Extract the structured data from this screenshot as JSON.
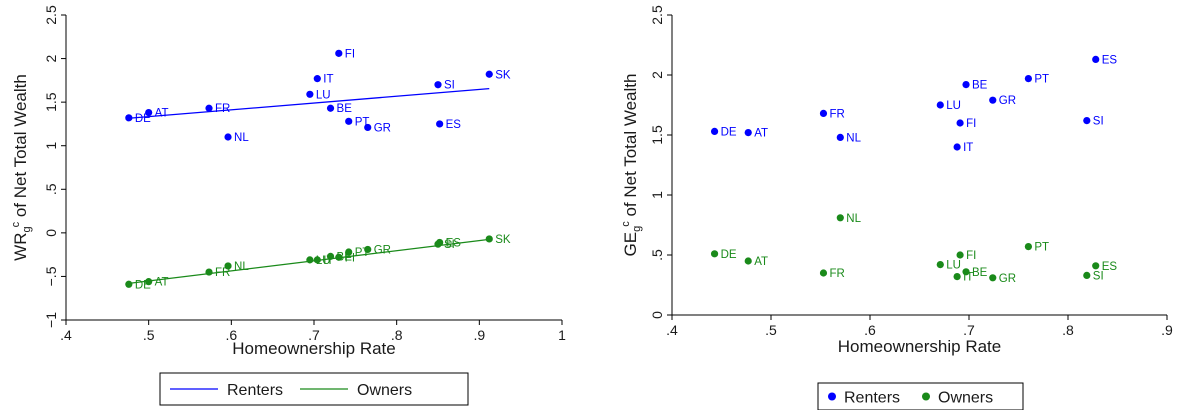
{
  "colors": {
    "renters": "#0000ff",
    "owners": "#1a8a1a"
  },
  "chart_data": [
    {
      "type": "scatter",
      "xlabel": "Homeownership Rate",
      "ylabel_main": "WR",
      "ylabel_sub": "g",
      "ylabel_sup": "c",
      "ylabel_rest": " of Net Total Wealth",
      "xlim": [
        0.4,
        1.0
      ],
      "ylim": [
        -1.0,
        2.5
      ],
      "xticks": [
        ".4",
        ".5",
        ".6",
        ".7",
        ".8",
        ".9",
        "1"
      ],
      "xtick_values": [
        0.4,
        0.5,
        0.6,
        0.7,
        0.8,
        0.9,
        1.0
      ],
      "yticks": [
        "−1",
        "−.5",
        "0",
        ".5",
        "1",
        "1.5",
        "2",
        "2.5"
      ],
      "ytick_values": [
        -1,
        -0.5,
        0,
        0.5,
        1,
        1.5,
        2,
        2.5
      ],
      "legend": {
        "position": "bottom",
        "items": [
          "Renters",
          "Owners"
        ],
        "marker": "line"
      },
      "series": [
        {
          "name": "Renters",
          "fit": {
            "x": [
              0.476,
              0.912
            ],
            "y": [
              1.315,
              1.655
            ]
          },
          "points": [
            {
              "label": "DE",
              "x": 0.476,
              "y": 1.32
            },
            {
              "label": "AT",
              "x": 0.5,
              "y": 1.38
            },
            {
              "label": "FR",
              "x": 0.573,
              "y": 1.43
            },
            {
              "label": "NL",
              "x": 0.596,
              "y": 1.1
            },
            {
              "label": "LU",
              "x": 0.695,
              "y": 1.59
            },
            {
              "label": "IT",
              "x": 0.704,
              "y": 1.77
            },
            {
              "label": "BE",
              "x": 0.72,
              "y": 1.43
            },
            {
              "label": "FI",
              "x": 0.73,
              "y": 2.06
            },
            {
              "label": "PT",
              "x": 0.742,
              "y": 1.28
            },
            {
              "label": "GR",
              "x": 0.765,
              "y": 1.21
            },
            {
              "label": "SI",
              "x": 0.85,
              "y": 1.7
            },
            {
              "label": "ES",
              "x": 0.852,
              "y": 1.25
            },
            {
              "label": "SK",
              "x": 0.912,
              "y": 1.82
            }
          ]
        },
        {
          "name": "Owners",
          "fit": {
            "x": [
              0.476,
              0.912
            ],
            "y": [
              -0.58,
              -0.075
            ]
          },
          "points": [
            {
              "label": "DE",
              "x": 0.476,
              "y": -0.59
            },
            {
              "label": "AT",
              "x": 0.5,
              "y": -0.56
            },
            {
              "label": "FR",
              "x": 0.573,
              "y": -0.45
            },
            {
              "label": "NL",
              "x": 0.596,
              "y": -0.38
            },
            {
              "label": "LU",
              "x": 0.695,
              "y": -0.31
            },
            {
              "label": "IT",
              "x": 0.704,
              "y": -0.31
            },
            {
              "label": "BE",
              "x": 0.72,
              "y": -0.27
            },
            {
              "label": "FI",
              "x": 0.73,
              "y": -0.28
            },
            {
              "label": "PT",
              "x": 0.742,
              "y": -0.22
            },
            {
              "label": "GR",
              "x": 0.765,
              "y": -0.19
            },
            {
              "label": "SI",
              "x": 0.85,
              "y": -0.13
            },
            {
              "label": "ES",
              "x": 0.852,
              "y": -0.11
            },
            {
              "label": "SK",
              "x": 0.912,
              "y": -0.07
            }
          ]
        }
      ]
    },
    {
      "type": "scatter",
      "xlabel": "Homeownership Rate",
      "ylabel_main": "GE",
      "ylabel_sub": "g",
      "ylabel_sup": "c",
      "ylabel_rest": " of Net Total Wealth",
      "xlim": [
        0.4,
        0.9
      ],
      "ylim": [
        0,
        2.5
      ],
      "xticks": [
        ".4",
        ".5",
        ".6",
        ".7",
        ".8",
        ".9"
      ],
      "xtick_values": [
        0.4,
        0.5,
        0.6,
        0.7,
        0.8,
        0.9
      ],
      "yticks": [
        "0",
        ".5",
        "1",
        "1.5",
        "2",
        "2.5"
      ],
      "ytick_values": [
        0,
        0.5,
        1,
        1.5,
        2,
        2.5
      ],
      "legend": {
        "position": "bottom",
        "items": [
          "Renters",
          "Owners"
        ],
        "marker": "dot"
      },
      "series": [
        {
          "name": "Renters",
          "points": [
            {
              "label": "DE",
              "x": 0.443,
              "y": 1.53
            },
            {
              "label": "AT",
              "x": 0.477,
              "y": 1.52
            },
            {
              "label": "FR",
              "x": 0.553,
              "y": 1.68
            },
            {
              "label": "NL",
              "x": 0.57,
              "y": 1.48
            },
            {
              "label": "LU",
              "x": 0.671,
              "y": 1.75
            },
            {
              "label": "IT",
              "x": 0.688,
              "y": 1.4
            },
            {
              "label": "FI",
              "x": 0.691,
              "y": 1.6
            },
            {
              "label": "BE",
              "x": 0.697,
              "y": 1.92
            },
            {
              "label": "GR",
              "x": 0.724,
              "y": 1.79
            },
            {
              "label": "PT",
              "x": 0.76,
              "y": 1.97
            },
            {
              "label": "SI",
              "x": 0.819,
              "y": 1.62
            },
            {
              "label": "ES",
              "x": 0.828,
              "y": 2.13
            }
          ]
        },
        {
          "name": "Owners",
          "points": [
            {
              "label": "DE",
              "x": 0.443,
              "y": 0.51
            },
            {
              "label": "AT",
              "x": 0.477,
              "y": 0.45
            },
            {
              "label": "FR",
              "x": 0.553,
              "y": 0.35
            },
            {
              "label": "NL",
              "x": 0.57,
              "y": 0.81
            },
            {
              "label": "LU",
              "x": 0.671,
              "y": 0.42
            },
            {
              "label": "IT",
              "x": 0.688,
              "y": 0.32
            },
            {
              "label": "FI",
              "x": 0.691,
              "y": 0.5
            },
            {
              "label": "BE",
              "x": 0.697,
              "y": 0.36
            },
            {
              "label": "GR",
              "x": 0.724,
              "y": 0.31
            },
            {
              "label": "PT",
              "x": 0.76,
              "y": 0.57
            },
            {
              "label": "SI",
              "x": 0.819,
              "y": 0.33
            },
            {
              "label": "ES",
              "x": 0.828,
              "y": 0.41
            }
          ]
        }
      ]
    }
  ]
}
